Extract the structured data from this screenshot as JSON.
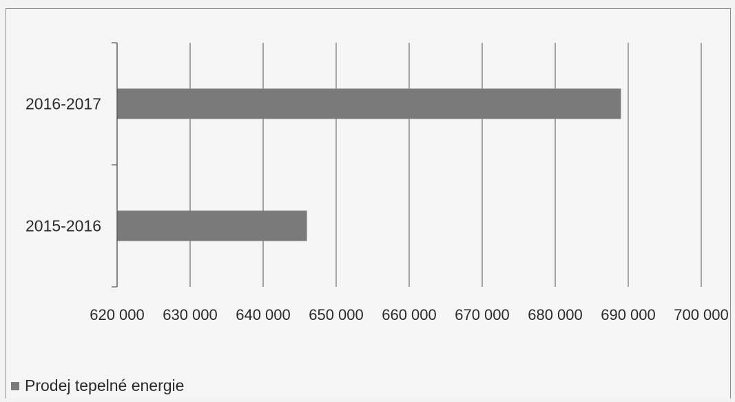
{
  "chart_data": {
    "type": "bar",
    "orientation": "horizontal",
    "categories": [
      "2015-2016",
      "2016-2017"
    ],
    "series": [
      {
        "name": "Prodej tepelné energie",
        "values": [
          646000,
          689000
        ]
      }
    ],
    "xlim": [
      620000,
      700000
    ],
    "x_ticks": [
      "620 000",
      "630 000",
      "640 000",
      "650 000",
      "660 000",
      "670 000",
      "680 000",
      "690 000",
      "700 000"
    ],
    "grid": "vertical",
    "legend_position": "bottom-left",
    "bar_color": "#7a7a7a"
  },
  "legend": {
    "label": "Prodej tepelné energie"
  }
}
